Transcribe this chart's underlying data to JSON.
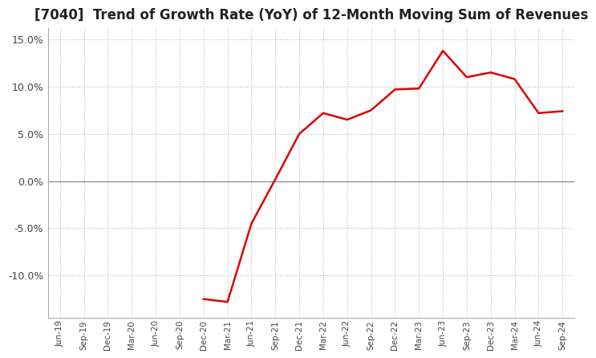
{
  "title": "[7040]  Trend of Growth Rate (YoY) of 12-Month Moving Sum of Revenues",
  "title_fontsize": 12,
  "background_color": "#ffffff",
  "line_color": "#dd0000",
  "ylim": [
    -0.145,
    0.162
  ],
  "yticks": [
    -0.1,
    -0.05,
    0.0,
    0.05,
    0.1,
    0.15
  ],
  "dates": [
    "Jun-19",
    "Sep-19",
    "Dec-19",
    "Mar-20",
    "Jun-20",
    "Sep-20",
    "Dec-20",
    "Mar-21",
    "Jun-21",
    "Sep-21",
    "Dec-21",
    "Mar-22",
    "Jun-22",
    "Sep-22",
    "Dec-22",
    "Mar-23",
    "Jun-23",
    "Sep-23",
    "Dec-23",
    "Mar-24",
    "Jun-24",
    "Sep-24"
  ],
  "yvalues": [
    null,
    null,
    null,
    null,
    null,
    null,
    -0.125,
    -0.128,
    -0.045,
    0.002,
    0.05,
    0.072,
    0.065,
    0.075,
    0.097,
    0.098,
    0.138,
    0.11,
    0.115,
    0.108,
    0.072,
    0.074
  ],
  "grid_color": "#bbbbbb",
  "zero_line_color": "#888888"
}
